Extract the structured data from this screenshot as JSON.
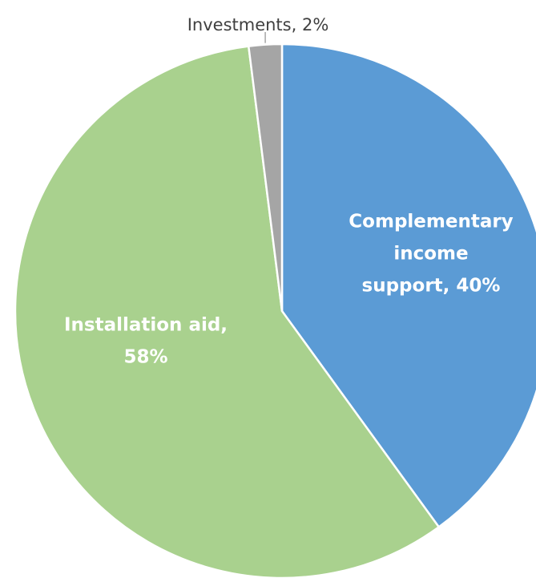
{
  "chart_data": {
    "type": "pie",
    "title": "",
    "slices": [
      {
        "name": "Complementary income support",
        "value": 40,
        "color": "#5b9bd5",
        "label_lines": [
          "Complementary",
          "income",
          "support, 40%"
        ],
        "label_color": "#ffffff"
      },
      {
        "name": "Installation aid",
        "value": 58,
        "color": "#a9d18e",
        "label_lines": [
          "Installation aid,",
          "58%"
        ],
        "label_color": "#ffffff"
      },
      {
        "name": "Investments",
        "value": 2,
        "color": "#a5a5a5",
        "label_lines": [
          "Investments, 2%"
        ],
        "label_color": "#404040"
      }
    ],
    "start_angle": "top (12 o'clock), clockwise",
    "legend": "none (data labels on slices)"
  }
}
